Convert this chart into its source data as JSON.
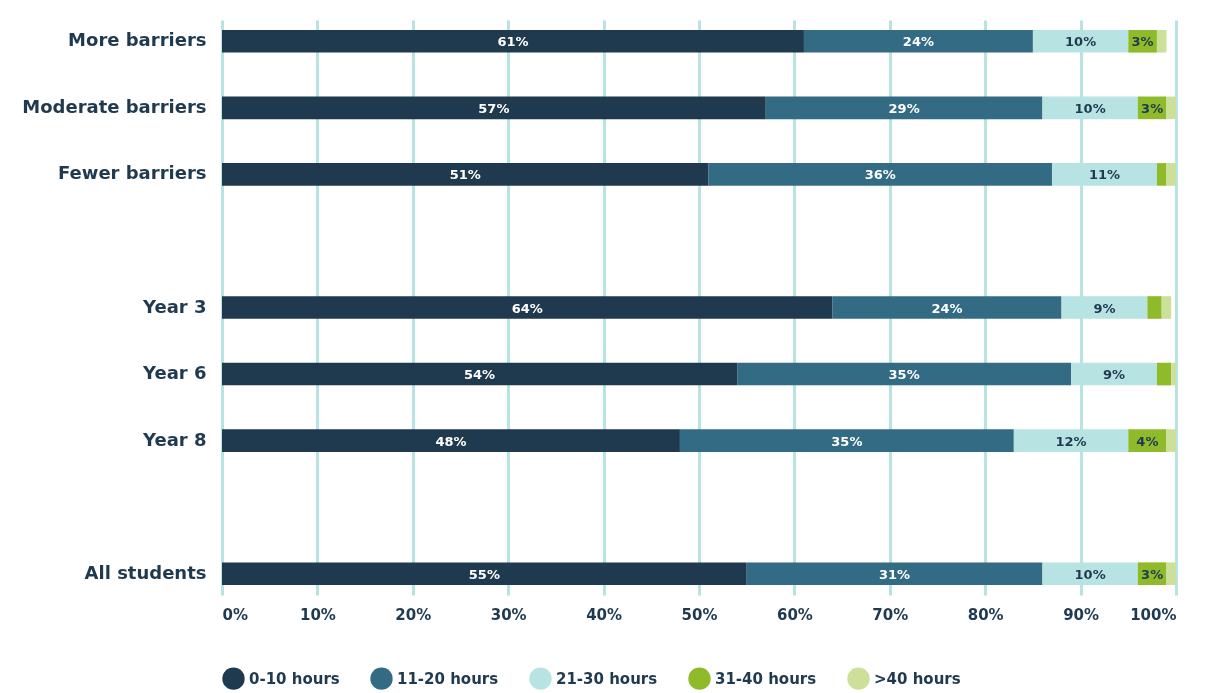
{
  "chart_data": {
    "type": "bar",
    "orientation": "horizontal",
    "stacked": true,
    "categories": [
      "More barriers",
      "Moderate barriers",
      "Fewer barriers",
      null,
      "Year 3",
      "Year 6",
      "Year 8",
      null,
      "All students"
    ],
    "series": [
      {
        "name": "0-10 hours",
        "color": "#1f3a4f",
        "values": [
          61,
          57,
          51,
          null,
          64,
          54,
          48,
          null,
          55
        ],
        "value_labels": [
          "61%",
          "57%",
          "51%",
          null,
          "64%",
          "54%",
          "48%",
          null,
          "55%"
        ]
      },
      {
        "name": "11-20 hours",
        "color": "#336b85",
        "values": [
          24,
          29,
          36,
          null,
          24,
          35,
          35,
          null,
          31
        ],
        "value_labels": [
          "24%",
          "29%",
          "36%",
          null,
          "24%",
          "35%",
          "35%",
          null,
          "31%"
        ]
      },
      {
        "name": "21-30 hours",
        "color": "#b8e3e3",
        "values": [
          10,
          10,
          11,
          null,
          9,
          9,
          12,
          null,
          10
        ],
        "value_labels": [
          "10%",
          "10%",
          "11%",
          null,
          "9%",
          "9%",
          "12%",
          null,
          "10%"
        ]
      },
      {
        "name": "31-40 hours",
        "color": "#8fbb2a",
        "values": [
          3,
          3,
          1,
          null,
          1.5,
          1.5,
          4,
          null,
          3
        ],
        "value_labels": [
          "3%",
          "3%",
          null,
          null,
          null,
          null,
          "4%",
          null,
          "3%"
        ]
      },
      {
        "name": ">40 hours",
        "color": "#cde09a",
        "values": [
          1,
          1,
          1,
          null,
          1,
          0.5,
          1,
          null,
          1
        ],
        "value_labels": [
          null,
          null,
          null,
          null,
          null,
          null,
          null,
          null,
          null
        ]
      }
    ],
    "xlim": [
      0,
      100
    ],
    "xticks": [
      {
        "value": 0,
        "label": "0%"
      },
      {
        "value": 10,
        "label": "10%"
      },
      {
        "value": 20,
        "label": "20%"
      },
      {
        "value": 30,
        "label": "30%"
      },
      {
        "value": 40,
        "label": "40%"
      },
      {
        "value": 50,
        "label": "50%"
      },
      {
        "value": 60,
        "label": "60%"
      },
      {
        "value": 70,
        "label": "70%"
      },
      {
        "value": 80,
        "label": "80%"
      },
      {
        "value": 90,
        "label": "90%"
      },
      {
        "value": 100,
        "label": "100%"
      }
    ],
    "grid": "x",
    "legend": "bottom"
  }
}
